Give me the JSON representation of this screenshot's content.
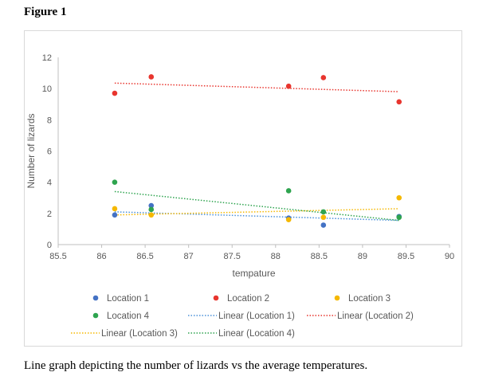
{
  "figure_label": "Figure 1",
  "caption": "Line graph depicting the number of lizards vs the average temperatures.",
  "chart_data": {
    "type": "scatter",
    "title": "",
    "xlabel": "tempature",
    "ylabel": "Number of lizards",
    "xlim": [
      85.5,
      90
    ],
    "ylim": [
      0,
      12
    ],
    "xticks": [
      "85.5",
      "86",
      "86.5",
      "87",
      "87.5",
      "88",
      "88.5",
      "89",
      "89.5",
      "90"
    ],
    "yticks": [
      "0",
      "2",
      "4",
      "6",
      "8",
      "10",
      "12"
    ],
    "grid": false,
    "legend_position": "bottom",
    "series": [
      {
        "name": "Location 1",
        "color": "#4472c4",
        "x": [
          86.15,
          86.57,
          88.15,
          88.55,
          89.42
        ],
        "y": [
          1.9,
          2.5,
          1.7,
          1.25,
          1.8
        ]
      },
      {
        "name": "Location 2",
        "color": "#e8352e",
        "x": [
          86.15,
          86.57,
          88.15,
          88.55,
          89.42
        ],
        "y": [
          9.7,
          10.75,
          10.15,
          10.7,
          9.15
        ]
      },
      {
        "name": "Location 3",
        "color": "#f5b800",
        "x": [
          86.15,
          86.57,
          88.15,
          88.55,
          89.42
        ],
        "y": [
          2.3,
          1.9,
          1.6,
          1.75,
          3.0
        ]
      },
      {
        "name": "Location 4",
        "color": "#2ea44f",
        "x": [
          86.15,
          86.57,
          88.15,
          88.55,
          89.42
        ],
        "y": [
          4.0,
          2.25,
          3.45,
          2.1,
          1.75
        ]
      }
    ],
    "trendlines": [
      {
        "name": "Linear (Location 1)",
        "color": "#4a90d9",
        "x": [
          86.15,
          89.42
        ],
        "y": [
          2.1,
          1.55
        ]
      },
      {
        "name": "Linear (Location 2)",
        "color": "#e8352e",
        "x": [
          86.15,
          89.42
        ],
        "y": [
          10.35,
          9.8
        ]
      },
      {
        "name": "Linear (Location 3)",
        "color": "#f5b800",
        "x": [
          86.15,
          89.42
        ],
        "y": [
          1.9,
          2.3
        ]
      },
      {
        "name": "Linear (Location 4)",
        "color": "#2ea44f",
        "x": [
          86.15,
          89.42
        ],
        "y": [
          3.4,
          1.55
        ]
      }
    ]
  }
}
